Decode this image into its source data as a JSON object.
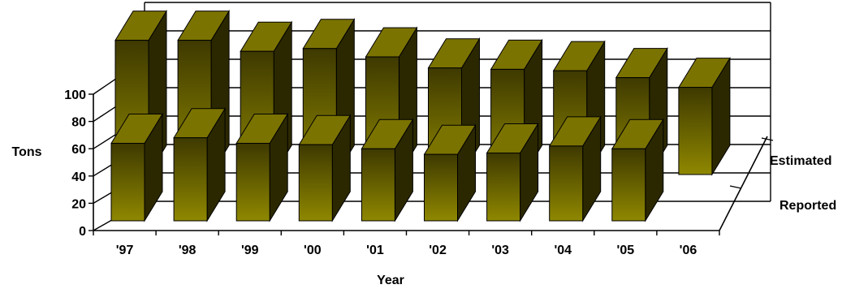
{
  "chart_data": {
    "type": "bar",
    "subtype": "3d-column",
    "title": "",
    "xlabel": "Year",
    "ylabel": "Tons",
    "ylim": [
      0,
      100
    ],
    "yticks": [
      "0",
      "20",
      "40",
      "60",
      "80",
      "100"
    ],
    "categories": [
      "'97",
      "'98",
      "'99",
      "'00",
      "'01",
      "'02",
      "'03",
      "'04",
      "'05",
      "'06"
    ],
    "series": [
      {
        "name": "Reported",
        "values": [
          56,
          60,
          56,
          55,
          52,
          48,
          49,
          54,
          52,
          null
        ]
      },
      {
        "name": "Estimated",
        "values": [
          97,
          97,
          89,
          91,
          85,
          77,
          76,
          75,
          70,
          63
        ]
      }
    ],
    "colors": {
      "front_top": "#3e3900",
      "front_bottom": "#8f8800",
      "top_face": "#7b7300",
      "side_face": "#2b2800",
      "outline": "#000000",
      "gridline": "#000000"
    },
    "grid": true,
    "legend": "none"
  }
}
